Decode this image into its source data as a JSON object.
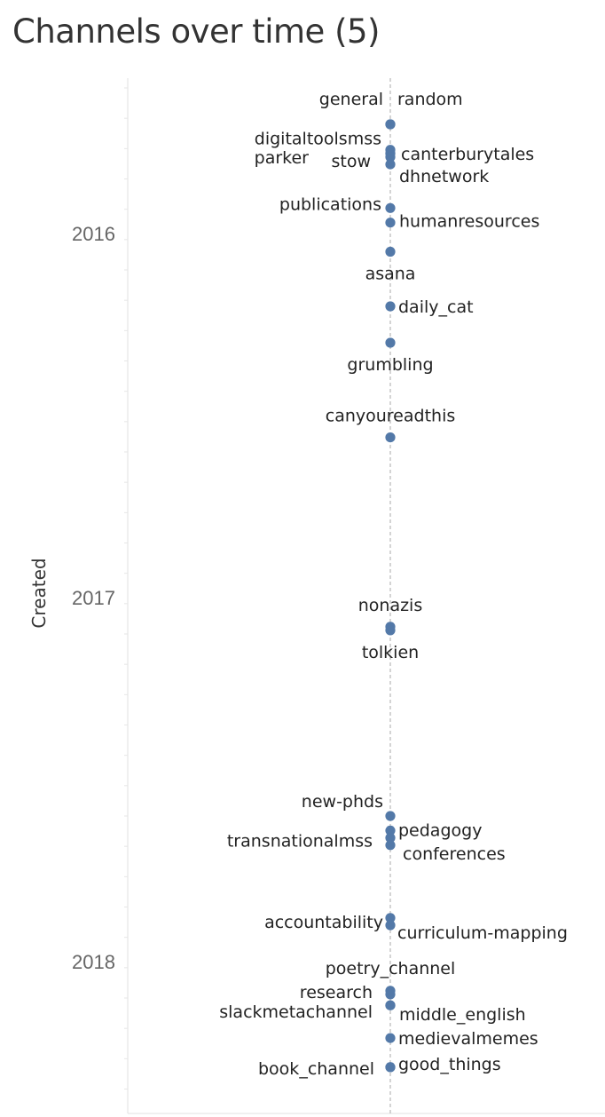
{
  "chart_data": {
    "type": "scatter",
    "title": "Channels over time (5)",
    "ylabel": "Created",
    "y_ticks": [
      "2016",
      "2017",
      "2018"
    ],
    "grid": false,
    "colors": {
      "point": "#5379a8",
      "axis_line": "#c8c8c8",
      "center_line": "#aaaaaa"
    },
    "points": [
      {
        "label": "general",
        "created": 2015.7
      },
      {
        "label": "random",
        "created": 2015.7
      },
      {
        "label": "digitaltoolsmss",
        "created": 2015.77
      },
      {
        "label": "canterburytales",
        "created": 2015.78
      },
      {
        "label": "parker",
        "created": 2015.78
      },
      {
        "label": "stow",
        "created": 2015.79
      },
      {
        "label": "dhnetwork",
        "created": 2015.81
      },
      {
        "label": "publications",
        "created": 2015.93
      },
      {
        "label": "humanresources",
        "created": 2015.97
      },
      {
        "label": "asana",
        "created": 2016.05
      },
      {
        "label": "daily_cat",
        "created": 2016.2
      },
      {
        "label": "grumbling",
        "created": 2016.3
      },
      {
        "label": "canyoureadthis",
        "created": 2016.56
      },
      {
        "label": "nonazis",
        "created": 2017.08
      },
      {
        "label": "tolkien",
        "created": 2017.09
      },
      {
        "label": "new-phds",
        "created": 2017.6
      },
      {
        "label": "pedagogy",
        "created": 2017.64
      },
      {
        "label": "transnationalmss",
        "created": 2017.66
      },
      {
        "label": "conferences",
        "created": 2017.68
      },
      {
        "label": "accountability",
        "created": 2017.88
      },
      {
        "label": "curriculum-mapping",
        "created": 2017.9
      },
      {
        "label": "poetry_channel",
        "created": 2018.08
      },
      {
        "label": "research",
        "created": 2018.09
      },
      {
        "label": "slackmetachannel",
        "created": 2018.12
      },
      {
        "label": "middle_english",
        "created": 2018.12
      },
      {
        "label": "medievalmemes",
        "created": 2018.21
      },
      {
        "label": "book_channel",
        "created": 2018.29
      },
      {
        "label": "good_things",
        "created": 2018.29
      }
    ]
  }
}
